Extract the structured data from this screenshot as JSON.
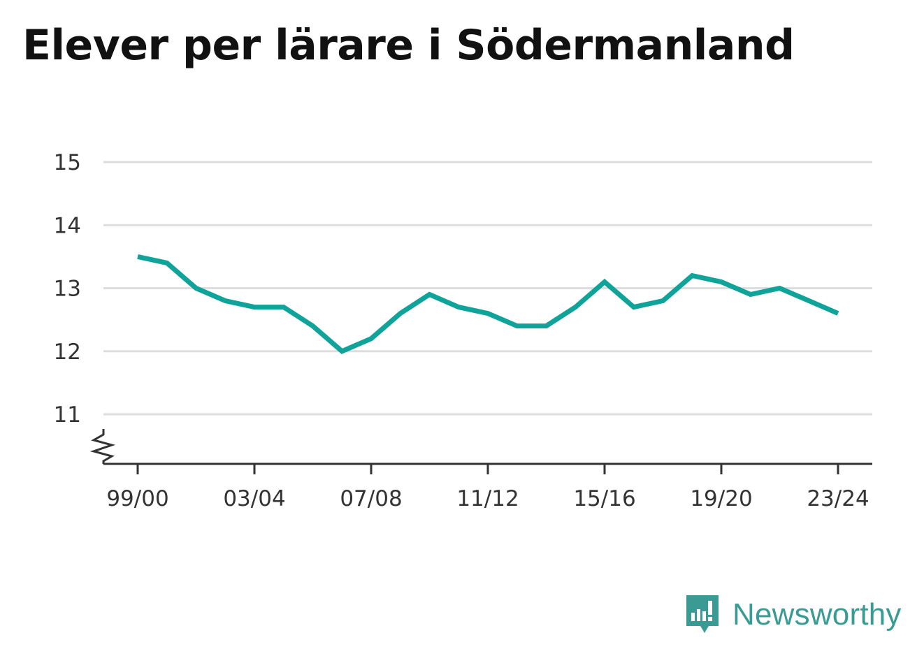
{
  "title": "Elever per lärare i Södermanland",
  "brand": {
    "name": "Newsworthy",
    "color": "#3a9b95",
    "icon": "newsworthy-logo-icon"
  },
  "chart_data": {
    "type": "line",
    "title": "Elever per lärare i Södermanland",
    "xlabel": "",
    "ylabel": "",
    "x": [
      "99/00",
      "00/01",
      "01/02",
      "02/03",
      "03/04",
      "04/05",
      "05/06",
      "06/07",
      "07/08",
      "08/09",
      "09/10",
      "10/11",
      "11/12",
      "12/13",
      "13/14",
      "14/15",
      "15/16",
      "16/17",
      "17/18",
      "18/19",
      "19/20",
      "20/21",
      "21/22",
      "22/23",
      "23/24"
    ],
    "x_ticks": [
      "99/00",
      "03/04",
      "07/08",
      "11/12",
      "15/16",
      "19/20",
      "23/24"
    ],
    "series": [
      {
        "name": "",
        "color": "#10a39a",
        "values": [
          13.5,
          13.4,
          13.0,
          12.8,
          12.7,
          12.7,
          12.4,
          12.0,
          12.2,
          12.6,
          12.9,
          12.7,
          12.6,
          12.4,
          12.4,
          12.7,
          13.1,
          12.7,
          12.8,
          13.2,
          13.1,
          12.9,
          13.0,
          12.8,
          12.6
        ]
      }
    ],
    "y_ticks": [
      11,
      12,
      13,
      14,
      15
    ],
    "ylim": [
      10.2,
      15
    ],
    "y_axis_break": true,
    "grid": true,
    "colors": {
      "line": "#10a39a",
      "grid": "#dddddd",
      "axis": "#333333"
    }
  }
}
